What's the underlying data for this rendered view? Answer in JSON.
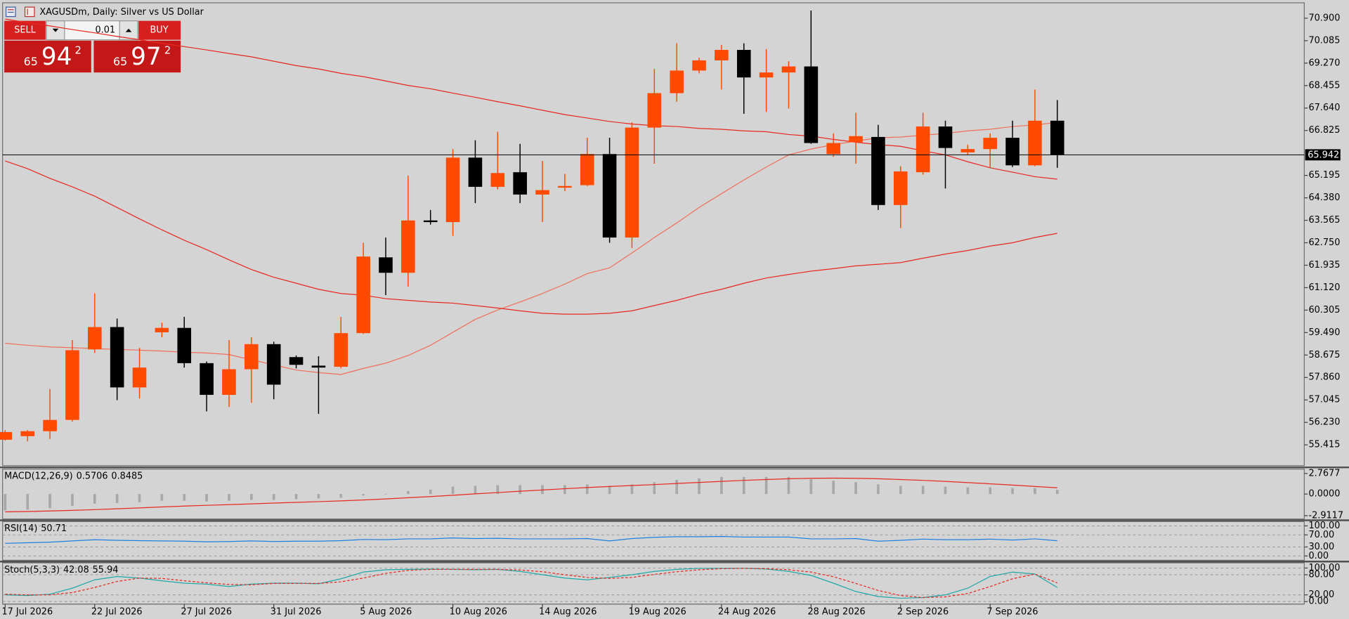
{
  "window": {
    "title": "XAGUSDm, Daily:  Silver vs US Dollar"
  },
  "trade_panel": {
    "sell_label": "SELL",
    "buy_label": "BUY",
    "lot": "0.01",
    "sell_price": {
      "big_figure": "65",
      "pips": "94",
      "fraction": "2"
    },
    "buy_price": {
      "big_figure": "65",
      "pips": "97",
      "fraction": "2"
    }
  },
  "chart_data": [
    {
      "type": "candlestick",
      "categories": [
        "17 Jul 2026",
        null,
        null,
        null,
        "22 Jul 2026",
        null,
        null,
        null,
        "27 Jul 2026",
        null,
        null,
        null,
        "31 Jul 2026",
        null,
        null,
        null,
        "5 Aug 2026",
        null,
        null,
        null,
        "10 Aug 2026",
        null,
        null,
        null,
        "14 Aug 2026",
        null,
        null,
        null,
        "19 Aug 2026",
        null,
        null,
        null,
        "24 Aug 2026",
        null,
        null,
        null,
        "28 Aug 2026",
        null,
        null,
        null,
        "2 Sep 2026",
        null,
        null,
        null,
        "7 Sep 2026",
        null,
        null,
        null
      ],
      "open": [
        55.6,
        55.73,
        55.91,
        56.32,
        58.88,
        59.69,
        57.5,
        59.5,
        59.66,
        58.38,
        57.23,
        58.16,
        59.07,
        58.6,
        58.29,
        58.25,
        59.47,
        62.22,
        61.66,
        63.56,
        63.5,
        65.84,
        64.78,
        65.31,
        64.5,
        64.75,
        64.84,
        65.97,
        62.94,
        66.93,
        68.18,
        69.0,
        69.37,
        69.75,
        68.75,
        68.93,
        69.15,
        65.97,
        66.4,
        66.59,
        64.12,
        65.31,
        66.97,
        66.03,
        66.15,
        66.56,
        65.56,
        67.18
      ],
      "high": [
        55.95,
        55.95,
        57.44,
        59.22,
        60.91,
        60.0,
        58.94,
        59.85,
        60.06,
        58.44,
        59.22,
        59.32,
        59.16,
        58.66,
        58.63,
        60.06,
        62.75,
        62.94,
        65.19,
        63.94,
        66.15,
        66.47,
        66.78,
        66.34,
        65.72,
        65.25,
        66.56,
        66.56,
        67.12,
        69.06,
        69.99,
        69.46,
        69.93,
        69.99,
        69.78,
        69.34,
        71.18,
        66.72,
        67.47,
        67.03,
        65.53,
        67.47,
        67.18,
        66.31,
        66.72,
        67.18,
        68.31,
        67.93
      ],
      "low": [
        55.57,
        55.54,
        55.63,
        56.26,
        58.75,
        57.04,
        57.1,
        59.32,
        58.22,
        56.63,
        56.79,
        56.94,
        57.07,
        58.19,
        56.54,
        58.19,
        59.44,
        60.85,
        61.16,
        63.41,
        63.0,
        64.19,
        64.69,
        64.19,
        63.5,
        64.62,
        64.81,
        62.75,
        62.56,
        65.62,
        67.87,
        68.9,
        68.31,
        67.43,
        67.5,
        67.62,
        66.34,
        65.87,
        65.62,
        63.94,
        63.28,
        65.22,
        64.72,
        65.94,
        65.47,
        65.5,
        65.53,
        65.47
      ],
      "close": [
        55.88,
        55.91,
        56.32,
        58.85,
        59.69,
        57.5,
        58.22,
        59.66,
        58.38,
        57.23,
        58.16,
        59.07,
        57.6,
        58.32,
        58.22,
        59.47,
        62.25,
        61.66,
        63.56,
        63.5,
        65.84,
        64.78,
        65.28,
        64.5,
        64.66,
        64.81,
        65.97,
        62.94,
        66.93,
        68.18,
        69.0,
        69.37,
        69.75,
        68.75,
        68.93,
        69.15,
        66.37,
        66.37,
        66.62,
        64.12,
        65.34,
        66.97,
        66.19,
        66.15,
        66.56,
        65.56,
        67.18,
        65.94
      ],
      "up_color": "#ff4a00",
      "down_color": "#000000",
      "overlays": [
        {
          "color": "#f0705c",
          "values": [
            59.1,
            59.03,
            58.97,
            58.94,
            58.91,
            58.88,
            58.85,
            58.82,
            58.78,
            58.75,
            58.69,
            58.5,
            58.32,
            58.13,
            58.04,
            57.97,
            58.19,
            58.38,
            58.66,
            59.03,
            59.5,
            59.97,
            60.31,
            60.6,
            60.91,
            61.25,
            61.63,
            61.84,
            62.38,
            62.94,
            63.47,
            64.03,
            64.53,
            65.03,
            65.5,
            65.94,
            66.15,
            66.31,
            66.44,
            66.56,
            66.59,
            66.65,
            66.72,
            66.81,
            66.87,
            66.97,
            67.03,
            67.12
          ]
        },
        {
          "color": "#e8281e",
          "values": [
            65.72,
            65.44,
            65.09,
            64.78,
            64.44,
            64.03,
            63.62,
            63.22,
            62.84,
            62.5,
            62.13,
            61.78,
            61.5,
            61.28,
            61.06,
            60.91,
            60.85,
            60.72,
            60.66,
            60.6,
            60.56,
            60.47,
            60.38,
            60.28,
            60.19,
            60.16,
            60.16,
            60.19,
            60.28,
            60.47,
            60.66,
            60.88,
            61.06,
            61.28,
            61.47,
            61.6,
            61.72,
            61.81,
            61.91,
            61.97,
            62.03,
            62.19,
            62.34,
            62.47,
            62.63,
            62.75,
            62.94,
            63.09
          ]
        },
        {
          "color": "#e8281e",
          "values": [
            70.87,
            70.74,
            70.62,
            70.49,
            70.37,
            70.24,
            70.12,
            69.99,
            69.87,
            69.75,
            69.62,
            69.5,
            69.34,
            69.18,
            69.06,
            68.9,
            68.78,
            68.62,
            68.46,
            68.34,
            68.18,
            68.03,
            67.87,
            67.72,
            67.56,
            67.4,
            67.28,
            67.15,
            67.06,
            67.0,
            66.97,
            66.9,
            66.87,
            66.81,
            66.78,
            66.68,
            66.62,
            66.5,
            66.4,
            66.31,
            66.25,
            66.09,
            65.94,
            65.69,
            65.47,
            65.31,
            65.15,
            65.06
          ]
        }
      ],
      "current_price": 65.942,
      "ylim": [
        54.66,
        71.46
      ],
      "yticks": [
        {
          "value": 70.9,
          "label": "70.900"
        },
        {
          "value": 70.085,
          "label": "70.085"
        },
        {
          "value": 69.27,
          "label": "69.270"
        },
        {
          "value": 68.455,
          "label": "68.455"
        },
        {
          "value": 67.64,
          "label": "67.640"
        },
        {
          "value": 66.825,
          "label": "66.825"
        },
        {
          "value": 65.195,
          "label": "65.195"
        },
        {
          "value": 64.38,
          "label": "64.380"
        },
        {
          "value": 63.565,
          "label": "63.565"
        },
        {
          "value": 62.75,
          "label": "62.750"
        },
        {
          "value": 61.935,
          "label": "61.935"
        },
        {
          "value": 61.12,
          "label": "61.120"
        },
        {
          "value": 60.305,
          "label": "60.305"
        },
        {
          "value": 59.49,
          "label": "59.490"
        },
        {
          "value": 58.675,
          "label": "58.675"
        },
        {
          "value": 57.86,
          "label": "57.860"
        },
        {
          "value": 57.045,
          "label": "57.045"
        },
        {
          "value": 56.23,
          "label": "56.230"
        },
        {
          "value": 55.415,
          "label": "55.415"
        }
      ]
    },
    {
      "type": "macd",
      "label": "MACD(12,26,9)",
      "series": [
        {
          "style": "histogram",
          "color": "#a8a8a8",
          "values": [
            -2.2,
            -2.1,
            -1.9,
            -1.6,
            -1.3,
            -1.2,
            -1.1,
            -0.9,
            -0.9,
            -1.0,
            -0.9,
            -0.8,
            -0.8,
            -0.7,
            -0.6,
            -0.5,
            -0.2,
            0.0,
            0.4,
            0.6,
            1.0,
            1.1,
            1.2,
            1.2,
            1.2,
            1.2,
            1.3,
            1.1,
            1.3,
            1.6,
            1.9,
            2.1,
            2.3,
            2.3,
            2.3,
            2.3,
            2.0,
            1.8,
            1.6,
            1.3,
            1.1,
            1.1,
            1.0,
            0.9,
            0.9,
            0.8,
            0.8,
            0.5706
          ]
        },
        {
          "style": "line",
          "color": "#e8281e",
          "values": [
            -2.4,
            -2.35,
            -2.28,
            -2.2,
            -2.1,
            -1.98,
            -1.86,
            -1.74,
            -1.62,
            -1.52,
            -1.42,
            -1.32,
            -1.22,
            -1.12,
            -1.02,
            -0.92,
            -0.8,
            -0.66,
            -0.5,
            -0.34,
            -0.16,
            0.02,
            0.2,
            0.38,
            0.55,
            0.72,
            0.88,
            1.02,
            1.15,
            1.28,
            1.42,
            1.56,
            1.7,
            1.84,
            1.96,
            2.06,
            2.12,
            2.14,
            2.12,
            2.06,
            1.96,
            1.84,
            1.7,
            1.54,
            1.38,
            1.2,
            1.02,
            0.8485
          ]
        }
      ],
      "ylim": [
        -3.36,
        3.36
      ],
      "yticks": [
        {
          "value": 2.7677,
          "label": "2.7677"
        },
        {
          "value": 0,
          "label": "0.0000"
        },
        {
          "value": -2.9117,
          "label": "-2.9117"
        }
      ]
    },
    {
      "type": "line",
      "label": "RSI(14)",
      "series": [
        {
          "style": "line",
          "color": "#1e7fe0",
          "values": [
            42,
            44,
            46,
            50,
            54,
            52,
            51,
            50,
            49,
            47,
            48,
            50,
            48,
            49,
            49,
            51,
            55,
            54,
            57,
            57,
            60,
            58,
            59,
            57,
            57,
            57,
            58,
            50,
            58,
            62,
            64,
            64,
            65,
            63,
            63,
            63,
            57,
            57,
            58,
            49,
            52,
            56,
            54,
            54,
            56,
            53,
            57,
            50.71
          ]
        }
      ],
      "ylim": [
        -14.3,
        114.3
      ],
      "yticks": [
        {
          "value": 100,
          "label": "100.00"
        },
        {
          "value": 70,
          "label": "70.00"
        },
        {
          "value": 30,
          "label": "30.00"
        },
        {
          "value": 0,
          "label": "0.00"
        }
      ]
    },
    {
      "type": "line",
      "label": "Stoch(5,3,3)",
      "series": [
        {
          "style": "line",
          "color": "#20a8a8",
          "values": [
            20,
            18,
            22,
            40,
            65,
            75,
            70,
            62,
            55,
            52,
            45,
            52,
            55,
            55,
            53,
            68,
            88,
            95,
            96,
            97,
            96,
            95,
            96,
            90,
            80,
            70,
            65,
            72,
            80,
            90,
            96,
            99,
            99,
            99,
            97,
            90,
            78,
            55,
            30,
            15,
            10,
            12,
            20,
            40,
            75,
            88,
            82,
            42.08
          ]
        },
        {
          "style": "dashed",
          "color": "#e8281e",
          "values": [
            22,
            20,
            20,
            27,
            42,
            60,
            70,
            69,
            62,
            56,
            51,
            50,
            54,
            54,
            54,
            59,
            70,
            84,
            93,
            96,
            96,
            96,
            96,
            94,
            89,
            80,
            72,
            69,
            72,
            81,
            89,
            95,
            98,
            99,
            98,
            95,
            88,
            74,
            54,
            33,
            18,
            12,
            14,
            24,
            45,
            68,
            82,
            55.94
          ]
        }
      ],
      "ylim": [
        -7.7,
        115.4
      ],
      "yticks": [
        {
          "value": 100,
          "label": "100.00"
        },
        {
          "value": 80,
          "label": "80.00"
        },
        {
          "value": 20,
          "label": "20.00"
        },
        {
          "value": 0,
          "label": "0.00"
        }
      ]
    }
  ]
}
